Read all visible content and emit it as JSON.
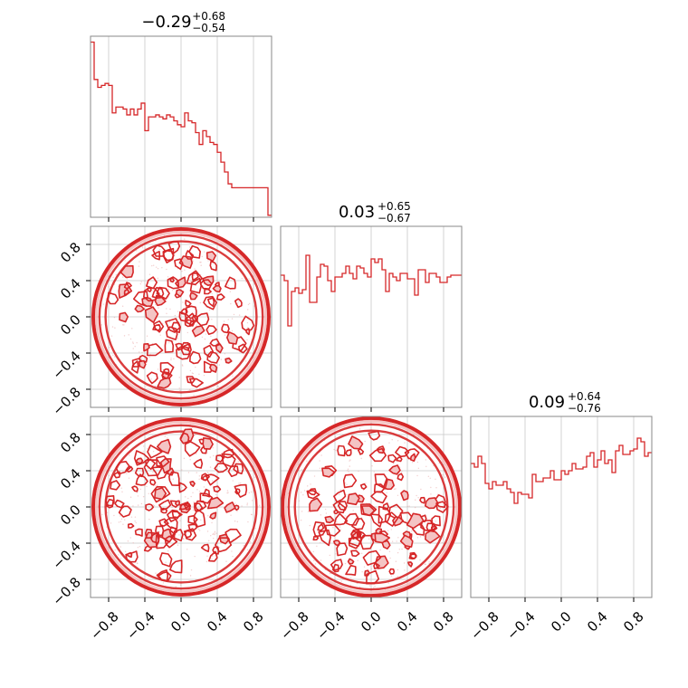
{
  "chart_data": {
    "type": "corner",
    "color": "#d62728",
    "axis_range": [
      -1.0,
      1.0
    ],
    "ticks": [
      -0.8,
      -0.4,
      0.0,
      0.4,
      0.8
    ],
    "tick_labels": [
      "−0.8",
      "−0.4",
      "0.0",
      "0.4",
      "0.8"
    ],
    "grid": true,
    "panels": [
      {
        "row": 0,
        "col": 0,
        "kind": "histogram",
        "title": {
          "median": "−0.29",
          "plus": "+0.68",
          "minus": "−0.54"
        },
        "bin_edges_start": -1.0,
        "bin_width": 0.04,
        "counts": [
          89,
          70,
          66,
          67,
          68,
          67,
          53,
          56,
          56,
          55,
          52,
          55,
          52,
          55,
          58,
          44,
          51,
          51,
          52,
          51,
          50,
          52,
          51,
          49,
          47,
          46,
          53,
          49,
          48,
          43,
          37,
          44,
          41,
          38,
          37,
          33,
          28,
          23,
          17,
          15,
          15,
          15,
          15,
          15,
          15,
          15,
          15,
          15,
          15,
          1
        ],
        "ymax": 92
      },
      {
        "row": 1,
        "col": 0,
        "kind": "contour",
        "region": {
          "cx": 0.0,
          "cy": 0.0,
          "r": 0.97
        }
      },
      {
        "row": 1,
        "col": 1,
        "kind": "histogram",
        "title": {
          "median": "0.03",
          "plus": "+0.65",
          "minus": "−0.67"
        },
        "bin_edges_start": -1.0,
        "bin_width": 0.04,
        "counts": [
          73,
          70,
          45,
          64,
          66,
          63,
          65,
          84,
          58,
          58,
          72,
          79,
          78,
          70,
          64,
          72,
          72,
          74,
          78,
          74,
          71,
          78,
          77,
          74,
          72,
          82,
          80,
          82,
          76,
          64,
          74,
          72,
          70,
          74,
          74,
          71,
          71,
          62,
          76,
          76,
          69,
          74,
          74,
          72,
          69,
          69,
          72,
          73,
          73,
          73
        ],
        "ymax": 100
      },
      {
        "row": 2,
        "col": 0,
        "kind": "contour",
        "region": {
          "cx": 0.0,
          "cy": 0.0,
          "r": 0.97
        }
      },
      {
        "row": 2,
        "col": 1,
        "kind": "contour",
        "region": {
          "cx": 0.0,
          "cy": 0.0,
          "r": 0.98
        }
      },
      {
        "row": 2,
        "col": 2,
        "kind": "histogram",
        "title": {
          "median": "0.09",
          "plus": "+0.64",
          "minus": "−0.76"
        },
        "bin_edges_start": -1.0,
        "bin_width": 0.04,
        "counts": [
          74,
          72,
          78,
          74,
          63,
          60,
          64,
          62,
          62,
          64,
          60,
          58,
          52,
          58,
          57,
          57,
          55,
          68,
          64,
          64,
          66,
          66,
          70,
          65,
          65,
          70,
          68,
          70,
          74,
          71,
          71,
          72,
          78,
          80,
          72,
          76,
          81,
          74,
          76,
          69,
          81,
          84,
          79,
          79,
          81,
          82,
          88,
          86,
          78,
          80
        ],
        "ymax": 100
      }
    ]
  }
}
